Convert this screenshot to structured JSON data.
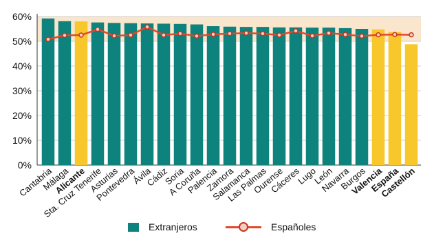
{
  "colors": {
    "extranjeros": "#0e827c",
    "highlight": "#f7c72c",
    "line": "#e3472a",
    "marker_fill": "#f4cfc2",
    "marker_stroke": "#c8341f",
    "band": "#f9e6cd",
    "grid": "#cfcfcf",
    "axis": "#333333"
  },
  "chart_data": {
    "type": "bar",
    "title": "",
    "xlabel": "",
    "ylabel": "",
    "ylim": [
      0,
      60
    ],
    "yticks": [
      "0%",
      "10%",
      "20%",
      "30%",
      "40%",
      "50%",
      "60%"
    ],
    "yband": [
      50,
      60
    ],
    "grid": true,
    "legend_position": "bottom",
    "categories": [
      "Cantabria",
      "Málaga",
      "Alicante",
      "Sta. Cruz Tenerife",
      "Asturias",
      "Pontevedra",
      "Ávila",
      "Cádiz",
      "Soria",
      "A Coruña",
      "Palencia",
      "Zamora",
      "Salamanca",
      "Las Palmas",
      "Ourense",
      "Cáceres",
      "Lugo",
      "León",
      "Navarra",
      "Burgos",
      "Valencia",
      "España",
      "Castellón"
    ],
    "highlighted": [
      "Alicante",
      "Valencia",
      "España",
      "Castellón"
    ],
    "series": [
      {
        "name": "Extranjeros",
        "kind": "bar",
        "values": [
          59.2,
          58.1,
          58.0,
          57.6,
          57.4,
          57.3,
          57.2,
          57.1,
          57.0,
          56.8,
          56.1,
          55.9,
          55.8,
          55.8,
          55.6,
          55.6,
          55.5,
          55.5,
          55.3,
          55.0,
          54.8,
          53.7,
          48.8
        ]
      },
      {
        "name": "Españoles",
        "kind": "line",
        "values": [
          50.8,
          52.4,
          52.5,
          54.8,
          52.2,
          52.5,
          55.8,
          52.5,
          53.1,
          52.1,
          52.8,
          53.1,
          53.3,
          53.1,
          52.5,
          54.2,
          52.2,
          53.3,
          52.7,
          52.1,
          52.6,
          52.7,
          52.6
        ]
      }
    ]
  },
  "legend": {
    "extranjeros": "Extranjeros",
    "espanoles": "Españoles"
  }
}
